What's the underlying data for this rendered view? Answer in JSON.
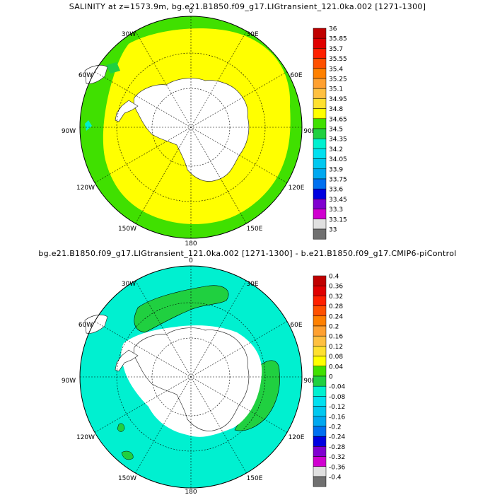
{
  "panel_top": {
    "title": "SALINITY at z=1573.9m, bg.e21.B1850.f09_g17.LIGtransient_121.0ka.002 [1271-1300]",
    "lon_labels": {
      "n": "0",
      "nne": "30E",
      "ene": "60E",
      "e": "90E",
      "ese": "120E",
      "sse": "150E",
      "s": "180",
      "ssw": "150W",
      "wsw": "120W",
      "w": "90W",
      "wnw": "60W",
      "nnw": "30W"
    },
    "colorbar": {
      "labels": [
        "36",
        "35.85",
        "35.7",
        "35.55",
        "35.4",
        "35.25",
        "35.1",
        "34.95",
        "34.8",
        "34.65",
        "34.5",
        "34.35",
        "34.2",
        "34.05",
        "33.9",
        "33.75",
        "33.6",
        "33.45",
        "33.3",
        "33.15",
        "33"
      ],
      "colors": [
        "#c00000",
        "#e00000",
        "#ff2000",
        "#ff5000",
        "#ff8000",
        "#ffa030",
        "#ffc040",
        "#ffe030",
        "#ffff00",
        "#40e000",
        "#20d040",
        "#00f0d0",
        "#00e0f0",
        "#00c8f0",
        "#00a8f0",
        "#0070f0",
        "#0000e0",
        "#8000d0",
        "#d000d0",
        "#e0e0e0",
        "#707070"
      ]
    }
  },
  "panel_bottom": {
    "title": "bg.e21.B1850.f09_g17.LIGtransient_121.0ka.002 [1271-1300] - b.e21.B1850.f09_g17.CMIP6-piControl",
    "lon_labels": {
      "n": "0",
      "nne": "30E",
      "ene": "60E",
      "e": "90E",
      "ese": "120E",
      "sse": "150E",
      "s": "180",
      "ssw": "150W",
      "wsw": "120W",
      "w": "90W",
      "wnw": "60W",
      "nnw": "30W"
    },
    "colorbar": {
      "labels": [
        "0.4",
        "0.36",
        "0.32",
        "0.28",
        "0.24",
        "0.2",
        "0.16",
        "0.12",
        "0.08",
        "0.04",
        "0",
        "-0.04",
        "-0.08",
        "-0.12",
        "-0.16",
        "-0.2",
        "-0.24",
        "-0.28",
        "-0.32",
        "-0.36",
        "-0.4"
      ],
      "colors": [
        "#c00000",
        "#e00000",
        "#ff2000",
        "#ff5000",
        "#ff8000",
        "#ffa030",
        "#ffc040",
        "#ffe030",
        "#ffff00",
        "#40e000",
        "#20d040",
        "#00f0d0",
        "#00e0f0",
        "#00c8f0",
        "#00a8f0",
        "#0070f0",
        "#0000e0",
        "#8000d0",
        "#d000d0",
        "#e0e0e0",
        "#707070"
      ]
    }
  }
}
